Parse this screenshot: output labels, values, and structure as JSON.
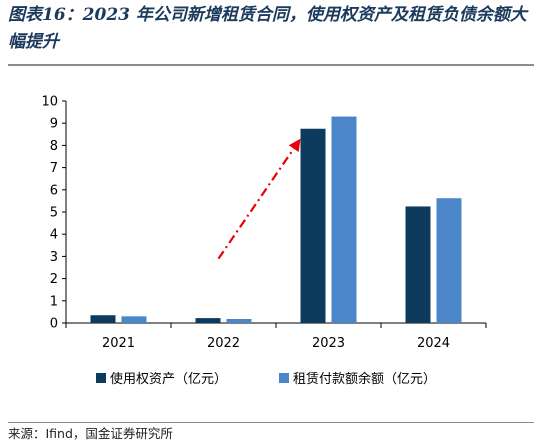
{
  "title": "图表16：2023 年公司新增租赁合同，使用权资产及租赁负债余额大幅提升",
  "source": "来源：Ifind，国金证券研究所",
  "chart_data": {
    "type": "bar",
    "categories": [
      "2021",
      "2022",
      "2023",
      "2024"
    ],
    "series": [
      {
        "name": "使用权资产（亿元）",
        "values": [
          0.35,
          0.22,
          8.75,
          5.25
        ],
        "color": "#0d3b5e"
      },
      {
        "name": "租赁付款额余额（亿元）",
        "values": [
          0.3,
          0.18,
          9.3,
          5.62
        ],
        "color": "#4a86c8"
      }
    ],
    "ylim": [
      0,
      10
    ],
    "yticks": [
      0,
      1,
      2,
      3,
      4,
      5,
      6,
      7,
      8,
      9,
      10
    ],
    "grid": false,
    "legend": "bottom",
    "annotation": {
      "type": "dash-dot arrow",
      "from": [
        "2022",
        2.9
      ],
      "to": [
        "2023",
        8.3
      ],
      "color": "#e8000b"
    }
  }
}
